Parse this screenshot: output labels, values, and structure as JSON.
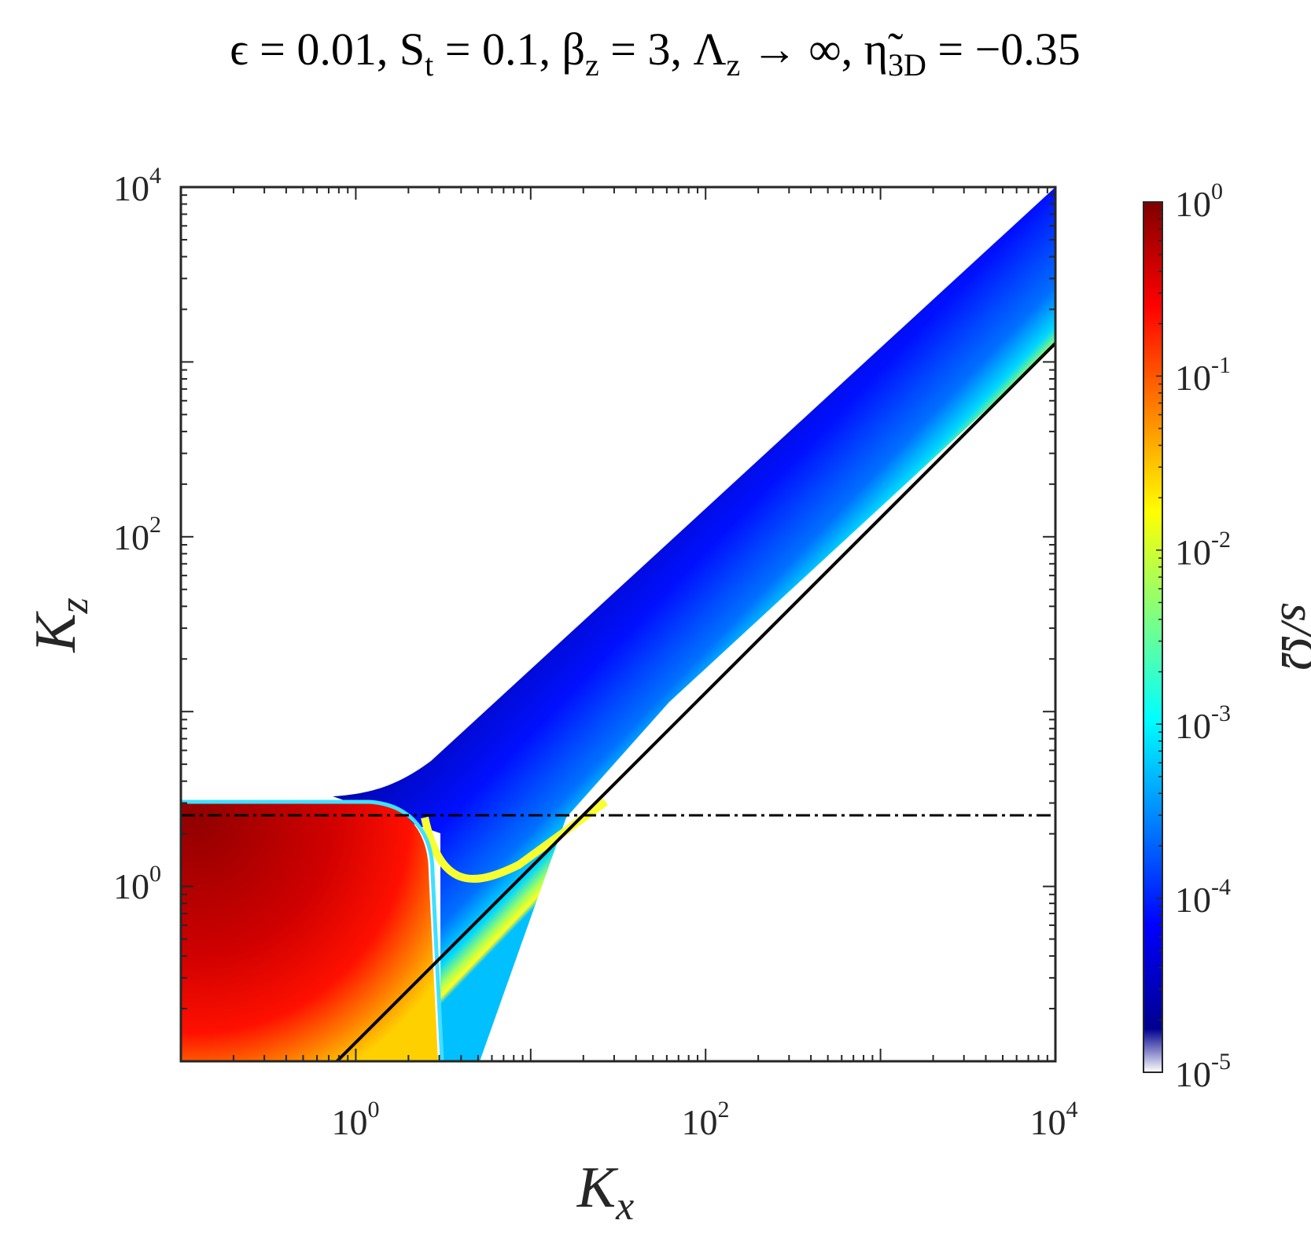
{
  "title": {
    "part1": "ϵ = 0.01, S",
    "part1_sub": "t",
    "part2": " = 0.1, β",
    "part2_sub": "z",
    "part3": " = 3, Λ",
    "part3_sub": "z",
    "part4": " → ∞, η̃",
    "part4_sub": "3D",
    "part5": " = −0.35"
  },
  "axes": {
    "x_label": "K",
    "x_label_sub": "x",
    "y_label": "K",
    "y_label_sub": "z",
    "x_ticks": [
      {
        "base": "10",
        "exp": "0"
      },
      {
        "base": "10",
        "exp": "2"
      },
      {
        "base": "10",
        "exp": "4"
      }
    ],
    "y_ticks": [
      {
        "base": "10",
        "exp": "0"
      },
      {
        "base": "10",
        "exp": "2"
      },
      {
        "base": "10",
        "exp": "4"
      }
    ]
  },
  "colorbar": {
    "label": "s/Ω",
    "ticks": [
      {
        "base": "10",
        "exp": "0"
      },
      {
        "base": "10",
        "exp": "-1"
      },
      {
        "base": "10",
        "exp": "-2"
      },
      {
        "base": "10",
        "exp": "-3"
      },
      {
        "base": "10",
        "exp": "-4"
      },
      {
        "base": "10",
        "exp": "-5"
      }
    ],
    "colormap": [
      "#ffffff",
      "#00008f",
      "#0000ff",
      "#0080ff",
      "#00ffff",
      "#80ff80",
      "#ffff00",
      "#ff8000",
      "#ff0000",
      "#800000"
    ]
  },
  "chart_data": {
    "type": "heatmap",
    "title": "ϵ = 0.01, St = 0.1, βz = 3, Λz → ∞, η̃3D = −0.35",
    "xlabel": "Kx",
    "ylabel": "Kz",
    "colorbar_label": "s/Ω",
    "x_scale": "log",
    "y_scale": "log",
    "xlim": [
      0.1,
      10000
    ],
    "ylim": [
      0.1,
      10000
    ],
    "clim": [
      1e-05,
      1
    ],
    "color_scale": "log",
    "colormap": "jet",
    "regions": [
      {
        "description": "strong growth",
        "Kx_max": 2.7,
        "Kz_max": 2.4,
        "value_range": [
          0.01,
          0.7
        ]
      },
      {
        "description": "diagonal unstable band",
        "Kz_over_Kx_range": [
          0.16,
          1.0
        ],
        "value_range": [
          1e-05,
          0.01
        ]
      }
    ],
    "lines": [
      {
        "style": "solid",
        "color": "#000000",
        "points": [
          [
            0.78,
            0.1
          ],
          [
            10000,
            1280
          ]
        ]
      },
      {
        "style": "dashdot",
        "color": "#000000",
        "points": [
          [
            0.1,
            2.55
          ],
          [
            10000,
            2.55
          ]
        ]
      }
    ],
    "grid": false
  }
}
